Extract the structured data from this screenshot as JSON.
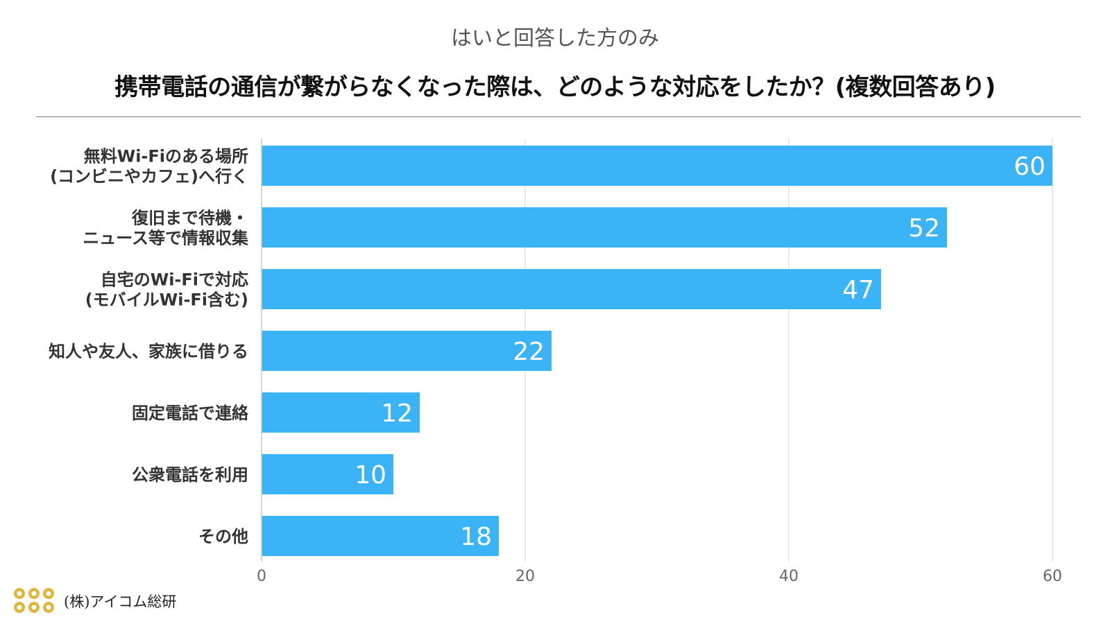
{
  "subtitle": "はいと回答した方のみ",
  "title": "携帯電話の通信が繋がらなくなった際は、どのような対応をしたか？(複数回答あり)",
  "brand": "(株)アイコム総研",
  "colors": {
    "bar": "#3bb4f7",
    "grid": "#e2e2e2",
    "label": "#333333",
    "value": "#ffffff"
  },
  "chart_data": {
    "type": "bar",
    "orientation": "horizontal",
    "categories": [
      [
        "無料Wi-Fiのある場所",
        "(コンビニやカフェ)へ行く"
      ],
      [
        "復旧まで待機・",
        "ニュース等で情報収集"
      ],
      [
        "自宅のWi-Fiで対応",
        "(モバイルWi-Fi含む)"
      ],
      [
        "知人や友人、家族に借りる"
      ],
      [
        "固定電話で連絡"
      ],
      [
        "公衆電話を利用"
      ],
      [
        "その他"
      ]
    ],
    "values": [
      60,
      52,
      47,
      22,
      12,
      10,
      18
    ],
    "xlim": [
      0,
      60
    ],
    "xticks": [
      0,
      20,
      40,
      60
    ],
    "grid": true,
    "data_labels": true
  }
}
